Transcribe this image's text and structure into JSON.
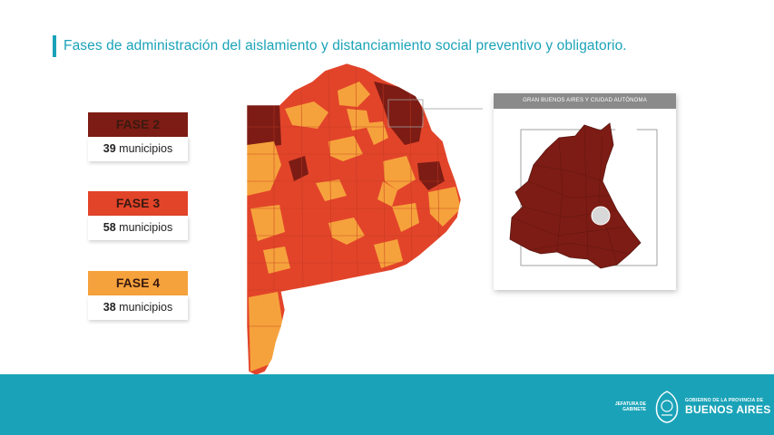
{
  "title": "Fases de administración del aislamiento y distanciamiento social preventivo y obligatorio.",
  "colors": {
    "accent": "#1aa3b8",
    "fase2": "#7d1c14",
    "fase3": "#e2442a",
    "fase4": "#f6a23c",
    "footer": "#1aa3b8"
  },
  "legend": [
    {
      "label": "FASE 2",
      "count": "39",
      "unit": "municipios"
    },
    {
      "label": "FASE 3",
      "count": "58",
      "unit": "municipios"
    },
    {
      "label": "FASE 4",
      "count": "38",
      "unit": "municipios"
    }
  ],
  "inset": {
    "title": "GRAN BUENOS AIRES Y CIUDAD AUTÓNOMA"
  },
  "footer": {
    "left_line1": "JEFATURA DE",
    "left_line2": "GABINETE",
    "right_line1": "GOBIERNO DE LA PROVINCIA DE",
    "right_line2": "BUENOS AIRES"
  }
}
